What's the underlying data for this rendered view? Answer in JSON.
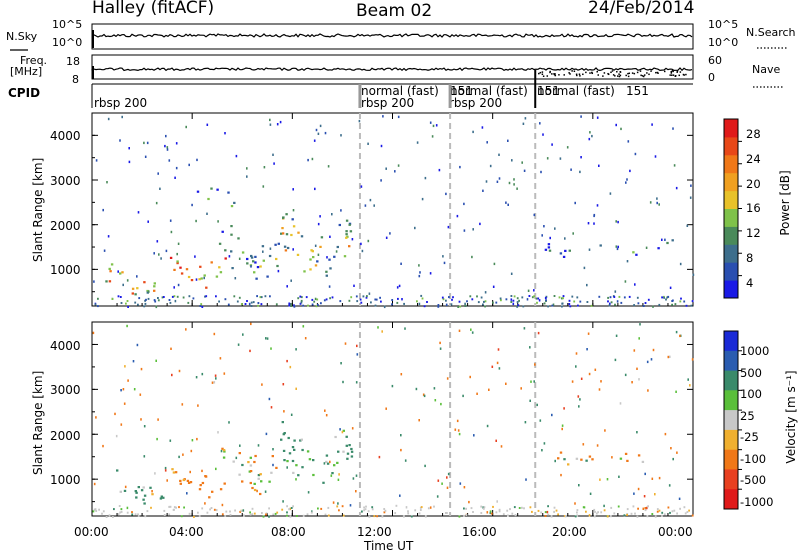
{
  "header": {
    "station": "Halley (fitACF)",
    "beam": "Beam 02",
    "date": "24/Feb/2014"
  },
  "strip_labels": {
    "nsky": "N.Sky",
    "nsky_ticks": [
      "10^5",
      "10^0"
    ],
    "nsearch": "N.Search",
    "nsearch_ticks": [
      "10^5",
      "10^0"
    ],
    "freq_line1": "Freq.",
    "freq_line2": "[MHz]",
    "freq_ticks": [
      "18",
      "8"
    ],
    "nave": "Nave",
    "nave_ticks": [
      "60",
      "0"
    ],
    "cpid": "CPID"
  },
  "cpid_segments": [
    {
      "name": "rbsp 200",
      "start_hour": 0.0
    },
    {
      "name": "normal (fast)",
      "start_hour": 10.7
    },
    {
      "name": "rbsp 200",
      "start_hour": 10.7
    },
    {
      "name": "151",
      "start_hour": 14.2
    },
    {
      "name": "normal (fast)",
      "start_hour": 14.3
    },
    {
      "name": "rbsp 200",
      "start_hour": 14.3
    },
    {
      "name": "151",
      "start_hour": 17.6
    },
    {
      "name": "normal (fast)",
      "start_hour": 17.7
    },
    {
      "name": "151",
      "start_hour": 17.7
    }
  ],
  "axes": {
    "ylabel": "Slant Range [km]",
    "xlabel": "Time UT",
    "y_ticks": [
      "1000",
      "2000",
      "3000",
      "4000"
    ],
    "x_ticks": [
      "00:00",
      "04:00",
      "08:00",
      "12:00",
      "16:00",
      "20:00",
      "00:00"
    ]
  },
  "power_colorbar": {
    "label": "Power [dB]",
    "ticks": [
      "4",
      "8",
      "12",
      "16",
      "20",
      "24",
      "28"
    ],
    "colors": [
      "#1a1ae6",
      "#2a4fb0",
      "#3d6e8c",
      "#4a8a5a",
      "#7fc24a",
      "#e8c22a",
      "#f0a020",
      "#f07818",
      "#e84818",
      "#e01a1a"
    ]
  },
  "velocity_colorbar": {
    "label": "Velocity [m s⁻¹]",
    "ticks": [
      "1000",
      "500",
      "100",
      "25",
      "-25",
      "-100",
      "-500",
      "-1000"
    ],
    "colors": [
      "#1a2ad6",
      "#2a5cb0",
      "#3a8a6a",
      "#5abf3a",
      "#c8c8c8",
      "#f0b030",
      "#f07818",
      "#e84020",
      "#e01a1a"
    ]
  },
  "chart_data": [
    {
      "type": "heatmap",
      "name": "Power",
      "x_range_hours": [
        0,
        24
      ],
      "y_range_km": [
        180,
        4500
      ],
      "scan_transitions_hours": [
        10.7,
        14.3,
        17.7
      ],
      "echo_regions": [
        {
          "t0": 0.5,
          "t1": 2.8,
          "r0": 500,
          "r1": 1100,
          "power_db": 18
        },
        {
          "t0": 2.8,
          "t1": 5.3,
          "r0": 700,
          "r1": 1300,
          "power_db": 22
        },
        {
          "t0": 5.0,
          "t1": 7.5,
          "r0": 900,
          "r1": 1800,
          "power_db": 10
        },
        {
          "t0": 7.5,
          "t1": 10.4,
          "r0": 950,
          "r1": 2100,
          "power_db": 14
        },
        {
          "t0": 3.6,
          "t1": 5.8,
          "r0": 2500,
          "r1": 2900,
          "power_db": 6
        },
        {
          "t0": 18.0,
          "t1": 23.5,
          "r0": 1350,
          "r1": 1650,
          "power_db": 6
        }
      ]
    },
    {
      "type": "heatmap",
      "name": "Velocity",
      "x_range_hours": [
        0,
        24
      ],
      "y_range_km": [
        180,
        4500
      ],
      "scan_transitions_hours": [
        10.7,
        14.3,
        17.7
      ],
      "echo_regions": [
        {
          "t0": 0.5,
          "t1": 2.8,
          "r0": 500,
          "r1": 1100,
          "velocity_ms": 150
        },
        {
          "t0": 2.8,
          "t1": 5.3,
          "r0": 700,
          "r1": 1300,
          "velocity_ms": -200
        },
        {
          "t0": 5.0,
          "t1": 7.5,
          "r0": 900,
          "r1": 1800,
          "velocity_ms": -100
        },
        {
          "t0": 7.5,
          "t1": 10.4,
          "r0": 950,
          "r1": 2100,
          "velocity_ms": 200
        },
        {
          "t0": 18.0,
          "t1": 23.5,
          "r0": 1350,
          "r1": 1650,
          "velocity_ms": -50
        }
      ]
    }
  ]
}
